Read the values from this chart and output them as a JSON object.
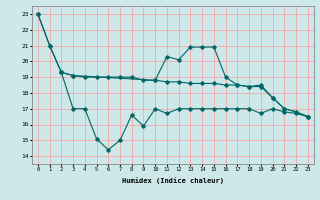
{
  "xlabel": "Humidex (Indice chaleur)",
  "ylabel": "",
  "bg_color": "#cce8e8",
  "grid_color": "#ff9999",
  "line_color": "#006666",
  "xlim": [
    -0.5,
    23.5
  ],
  "ylim": [
    13.5,
    23.5
  ],
  "yticks": [
    14,
    15,
    16,
    17,
    18,
    19,
    20,
    21,
    22,
    23
  ],
  "xticks": [
    0,
    1,
    2,
    3,
    4,
    5,
    6,
    7,
    8,
    9,
    10,
    11,
    12,
    13,
    14,
    15,
    16,
    17,
    18,
    19,
    20,
    21,
    22,
    23
  ],
  "series": [
    {
      "x": [
        0,
        1,
        2,
        3,
        4,
        5,
        6,
        7,
        8,
        9,
        10,
        11,
        12,
        13,
        14,
        15,
        16,
        17,
        18,
        19,
        20,
        21,
        22,
        23
      ],
      "y": [
        23,
        21,
        19.3,
        19.1,
        19.0,
        19.0,
        19.0,
        19.0,
        19.0,
        18.8,
        18.8,
        18.7,
        18.7,
        18.6,
        18.6,
        18.6,
        18.5,
        18.5,
        18.4,
        18.4,
        17.7,
        17.0,
        16.8,
        16.5
      ]
    },
    {
      "x": [
        2,
        3,
        4,
        5,
        6,
        7,
        8,
        9,
        10,
        11,
        12,
        13,
        14,
        15,
        16,
        17,
        18,
        19,
        20,
        21,
        22,
        23
      ],
      "y": [
        19.3,
        17.0,
        17.0,
        15.1,
        14.4,
        15.0,
        16.6,
        15.9,
        17.0,
        16.7,
        17.0,
        17.0,
        17.0,
        17.0,
        17.0,
        17.0,
        17.0,
        16.7,
        17.0,
        16.8,
        16.7,
        16.5
      ]
    },
    {
      "x": [
        0,
        1,
        2,
        3,
        10,
        11,
        12,
        13,
        14,
        15,
        16,
        17,
        18,
        19,
        20,
        21,
        22,
        23
      ],
      "y": [
        23,
        21,
        19.3,
        19.1,
        18.8,
        20.3,
        20.1,
        20.9,
        20.9,
        20.9,
        19.0,
        18.5,
        18.4,
        18.5,
        17.7,
        17.0,
        16.8,
        16.5
      ]
    }
  ]
}
